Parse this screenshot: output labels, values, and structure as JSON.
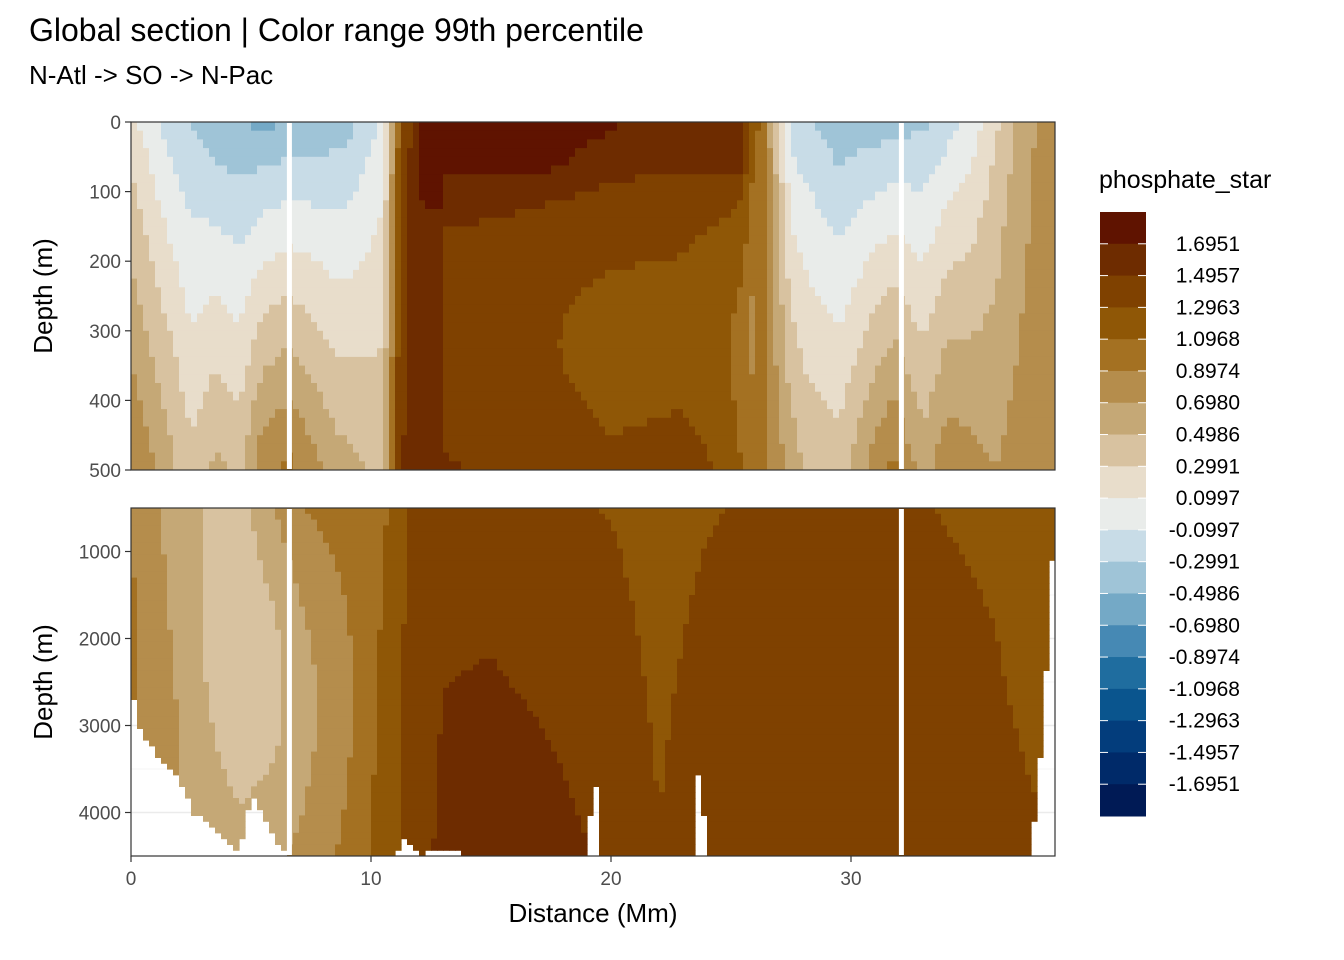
{
  "chart_data": {
    "type": "heatmap",
    "subtype": "filled-contour section",
    "title": "Global section | Color range 99th percentile",
    "subtitle": "N-Atl -> SO -> N-Pac",
    "xlabel": "Distance (Mm)",
    "x_ticks": [
      "0",
      "10",
      "20",
      "30"
    ],
    "xlim": [
      0,
      38.5
    ],
    "panels": [
      {
        "ylabel": "Depth (m)",
        "ylim": [
          0,
          500
        ],
        "y_reversed": true,
        "y_ticks": [
          "0",
          "100",
          "200",
          "300",
          "400",
          "500"
        ]
      },
      {
        "ylabel": "Depth (m)",
        "ylim": [
          500,
          4500
        ],
        "y_reversed": true,
        "y_ticks": [
          "1000",
          "2000",
          "3000",
          "4000"
        ]
      }
    ],
    "gaps_x": [
      6.6,
      32.1
    ],
    "legend": {
      "title": "phosphate_star",
      "placement": "right",
      "breaks": [
        "1.6951",
        "1.4957",
        "1.2963",
        "1.0968",
        "0.8974",
        "0.6980",
        "0.4986",
        "0.2991",
        "0.0997",
        "-0.0997",
        "-0.2991",
        "-0.4986",
        "-0.6980",
        "-0.8974",
        "-1.0968",
        "-1.2963",
        "-1.4957",
        "-1.6951"
      ],
      "colors": [
        "#5f1300",
        "#6e2c00",
        "#7f4100",
        "#8f5706",
        "#a47122",
        "#b58d4c",
        "#c5a876",
        "#d8c2a0",
        "#e8ddcb",
        "#e9ecea",
        "#c8dce7",
        "#9fc4d7",
        "#74a9c6",
        "#4689b4",
        "#1f6d9f",
        "#0a558e",
        "#033d7c",
        "#002a69",
        "#001a55"
      ]
    },
    "grid": true
  }
}
